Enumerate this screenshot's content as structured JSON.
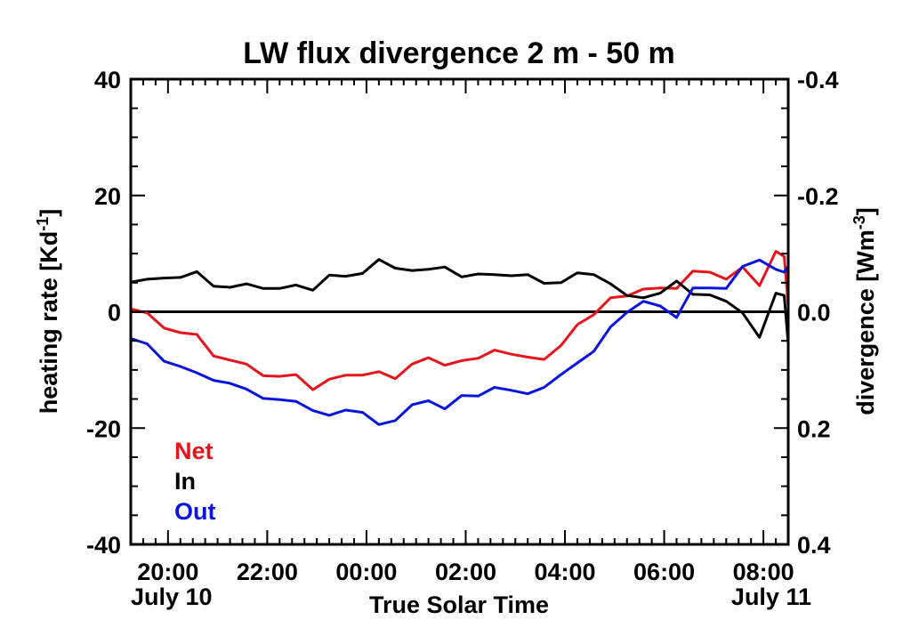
{
  "chart_data": {
    "type": "line",
    "title": "LW flux divergence 2 m - 50 m",
    "xlabel": "True Solar Time",
    "ylabel": {
      "base": "heating rate [Kd",
      "sup": "-1",
      "end": "]"
    },
    "y2label": {
      "base": "divergence [Wm",
      "sup": "-3",
      "end": "]"
    },
    "x_range": [
      19.25,
      32.5
    ],
    "ylim": [
      -40,
      40
    ],
    "y2_range": [
      0.4,
      -0.4
    ],
    "x_ticks": [
      {
        "x": 20,
        "label": "20:00"
      },
      {
        "x": 22,
        "label": "22:00"
      },
      {
        "x": 24,
        "label": "00:00"
      },
      {
        "x": 26,
        "label": "02:00"
      },
      {
        "x": 28,
        "label": "04:00"
      },
      {
        "x": 30,
        "label": "06:00"
      },
      {
        "x": 32,
        "label": "08:00"
      }
    ],
    "date_labels": [
      {
        "x": 19.25,
        "label": "July 10",
        "align": "start"
      },
      {
        "x": 32.5,
        "label": "July 11",
        "align": "end"
      }
    ],
    "y_ticks": [
      {
        "y": 40,
        "label": "40"
      },
      {
        "y": 20,
        "label": "20"
      },
      {
        "y": 0,
        "label": "0"
      },
      {
        "y": -20,
        "label": "-20"
      },
      {
        "y": -40,
        "label": "-40"
      }
    ],
    "y2_ticks": [
      {
        "y": 40,
        "label": "-0.4"
      },
      {
        "y": 20,
        "label": "-0.2"
      },
      {
        "y": 0,
        "label": "0.0"
      },
      {
        "y": -20,
        "label": "0.2"
      },
      {
        "y": -40,
        "label": "0.4"
      }
    ],
    "zero_line": true,
    "legend_position": "bottom-left",
    "series": [
      {
        "name": "Net",
        "color": "#e8141c",
        "points": [
          [
            19.25,
            0.5
          ],
          [
            19.58,
            -0.2
          ],
          [
            19.92,
            -2.8
          ],
          [
            20.25,
            -3.6
          ],
          [
            20.58,
            -3.9
          ],
          [
            20.92,
            -7.6
          ],
          [
            21.25,
            -8.3
          ],
          [
            21.58,
            -9.0
          ],
          [
            21.92,
            -11.0
          ],
          [
            22.25,
            -11.1
          ],
          [
            22.58,
            -10.8
          ],
          [
            22.92,
            -13.4
          ],
          [
            23.25,
            -11.6
          ],
          [
            23.58,
            -10.9
          ],
          [
            23.92,
            -10.9
          ],
          [
            24.25,
            -10.3
          ],
          [
            24.58,
            -11.5
          ],
          [
            24.92,
            -9.0
          ],
          [
            25.25,
            -7.9
          ],
          [
            25.58,
            -9.2
          ],
          [
            25.92,
            -8.4
          ],
          [
            26.25,
            -8.0
          ],
          [
            26.58,
            -6.6
          ],
          [
            26.92,
            -7.3
          ],
          [
            27.25,
            -7.8
          ],
          [
            27.58,
            -8.2
          ],
          [
            27.92,
            -5.8
          ],
          [
            28.25,
            -2.2
          ],
          [
            28.58,
            -0.5
          ],
          [
            28.92,
            2.4
          ],
          [
            29.25,
            2.7
          ],
          [
            29.58,
            3.9
          ],
          [
            29.92,
            4.1
          ],
          [
            30.25,
            4.0
          ],
          [
            30.58,
            7.0
          ],
          [
            30.92,
            6.8
          ],
          [
            31.25,
            5.6
          ],
          [
            31.58,
            7.7
          ],
          [
            31.92,
            4.5
          ],
          [
            32.25,
            10.4
          ],
          [
            32.42,
            9.5
          ],
          [
            32.5,
            1.2
          ]
        ]
      },
      {
        "name": "In",
        "color": "#000000",
        "points": [
          [
            19.25,
            5.1
          ],
          [
            19.58,
            5.6
          ],
          [
            19.92,
            5.8
          ],
          [
            20.25,
            5.9
          ],
          [
            20.58,
            6.9
          ],
          [
            20.92,
            4.4
          ],
          [
            21.25,
            4.2
          ],
          [
            21.58,
            4.8
          ],
          [
            21.92,
            4.0
          ],
          [
            22.25,
            4.0
          ],
          [
            22.58,
            4.6
          ],
          [
            22.92,
            3.7
          ],
          [
            23.25,
            6.3
          ],
          [
            23.58,
            6.1
          ],
          [
            23.92,
            6.6
          ],
          [
            24.25,
            9.0
          ],
          [
            24.58,
            7.5
          ],
          [
            24.92,
            7.1
          ],
          [
            25.25,
            7.3
          ],
          [
            25.58,
            7.7
          ],
          [
            25.92,
            6.0
          ],
          [
            26.25,
            6.5
          ],
          [
            26.58,
            6.4
          ],
          [
            26.92,
            6.2
          ],
          [
            27.25,
            6.4
          ],
          [
            27.58,
            4.9
          ],
          [
            27.92,
            5.0
          ],
          [
            28.25,
            6.7
          ],
          [
            28.58,
            6.4
          ],
          [
            28.92,
            4.8
          ],
          [
            29.25,
            2.8
          ],
          [
            29.58,
            2.4
          ],
          [
            29.92,
            3.2
          ],
          [
            30.25,
            5.3
          ],
          [
            30.58,
            3.0
          ],
          [
            30.92,
            2.9
          ],
          [
            31.25,
            1.8
          ],
          [
            31.58,
            -0.2
          ],
          [
            31.92,
            -4.4
          ],
          [
            32.25,
            3.2
          ],
          [
            32.42,
            2.8
          ],
          [
            32.5,
            -5.5
          ]
        ]
      },
      {
        "name": "Out",
        "color": "#0a14e0",
        "points": [
          [
            19.25,
            -4.6
          ],
          [
            19.58,
            -5.5
          ],
          [
            19.92,
            -8.5
          ],
          [
            20.25,
            -9.4
          ],
          [
            20.58,
            -10.5
          ],
          [
            20.92,
            -11.8
          ],
          [
            21.25,
            -12.3
          ],
          [
            21.58,
            -13.3
          ],
          [
            21.92,
            -14.9
          ],
          [
            22.25,
            -15.1
          ],
          [
            22.58,
            -15.4
          ],
          [
            22.92,
            -17.0
          ],
          [
            23.25,
            -17.8
          ],
          [
            23.58,
            -16.9
          ],
          [
            23.92,
            -17.3
          ],
          [
            24.25,
            -19.4
          ],
          [
            24.58,
            -18.7
          ],
          [
            24.92,
            -16.0
          ],
          [
            25.25,
            -15.3
          ],
          [
            25.58,
            -16.7
          ],
          [
            25.92,
            -14.4
          ],
          [
            26.25,
            -14.5
          ],
          [
            26.58,
            -13.0
          ],
          [
            26.92,
            -13.5
          ],
          [
            27.25,
            -14.1
          ],
          [
            27.58,
            -13.0
          ],
          [
            27.92,
            -10.8
          ],
          [
            28.25,
            -8.8
          ],
          [
            28.58,
            -6.8
          ],
          [
            28.92,
            -2.6
          ],
          [
            29.25,
            -0.1
          ],
          [
            29.58,
            1.8
          ],
          [
            29.92,
            1.0
          ],
          [
            30.25,
            -1.0
          ],
          [
            30.58,
            4.1
          ],
          [
            30.92,
            4.1
          ],
          [
            31.25,
            4.0
          ],
          [
            31.58,
            7.8
          ],
          [
            31.92,
            8.9
          ],
          [
            32.25,
            7.3
          ],
          [
            32.42,
            6.8
          ],
          [
            32.5,
            7.8
          ]
        ]
      }
    ]
  }
}
